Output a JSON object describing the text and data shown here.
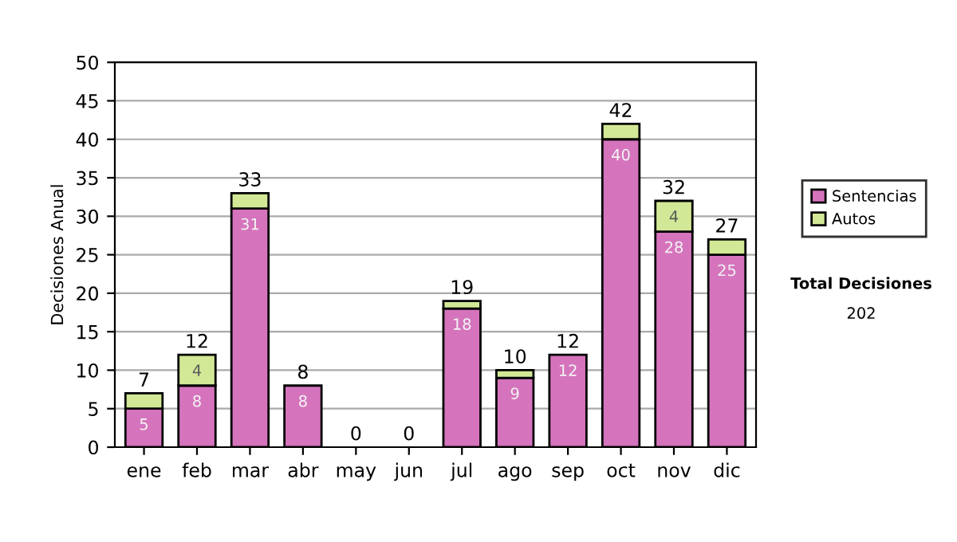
{
  "chart_data": {
    "type": "bar",
    "stacked": true,
    "ylabel": "Decisiones Anual",
    "categories": [
      "ene",
      "feb",
      "mar",
      "abr",
      "may",
      "jun",
      "jul",
      "ago",
      "sep",
      "oct",
      "nov",
      "dic"
    ],
    "series": [
      {
        "name": "Sentencias",
        "color": "#d574bd",
        "values": [
          5,
          8,
          31,
          8,
          0,
          0,
          18,
          9,
          12,
          40,
          28,
          25
        ],
        "value_labels": [
          "5",
          "8",
          "31",
          "8",
          null,
          null,
          "18",
          "9",
          "12",
          "40",
          "28",
          "25"
        ]
      },
      {
        "name": "Autos",
        "color": "#d2e896",
        "values": [
          2,
          4,
          2,
          0,
          0,
          0,
          1,
          1,
          0,
          2,
          4,
          2
        ],
        "value_labels": [
          null,
          "4",
          null,
          null,
          null,
          null,
          null,
          null,
          null,
          null,
          "4",
          null
        ]
      }
    ],
    "totals": [
      "7",
      "12",
      "33",
      "8",
      "0",
      "0",
      "19",
      "10",
      "12",
      "42",
      "32",
      "27"
    ],
    "ylim": [
      0,
      50
    ],
    "yticks": [
      0,
      5,
      10,
      15,
      20,
      25,
      30,
      35,
      40,
      45,
      50
    ],
    "grid": "y",
    "legend": "right",
    "annotations": [
      "Total Decisiones",
      "202"
    ]
  }
}
